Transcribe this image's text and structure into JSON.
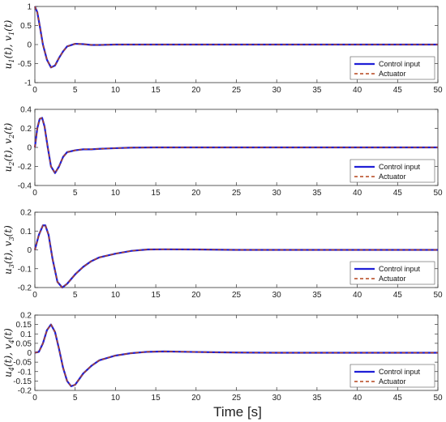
{
  "figure": {
    "xlabel": "Time [s]",
    "colors": {
      "control": "#1f1fd6",
      "actuator": "#b5451b",
      "axis": "#333333",
      "bg": "#ffffff"
    }
  },
  "chart_data": [
    {
      "type": "line",
      "ylabel": "u1(t), v1(t)",
      "ylabel_parts": {
        "var1": "u",
        "sub1": "1",
        "var2": "v",
        "sub2": "1"
      },
      "xlim": [
        0,
        50
      ],
      "ylim": [
        -1,
        1
      ],
      "xticks": [
        0,
        5,
        10,
        15,
        20,
        25,
        30,
        35,
        40,
        45,
        50
      ],
      "yticks": [
        -1,
        -0.5,
        0,
        0.5,
        1
      ],
      "ytick_labels": [
        "-1",
        "-0.5",
        "0",
        "0.5",
        "1"
      ],
      "legend": "bottom-right",
      "series": [
        {
          "name": "Control input",
          "style": "solid",
          "color": "#1f1fd6",
          "x": [
            0,
            0.3,
            0.6,
            1.0,
            1.5,
            2.0,
            2.5,
            3.0,
            3.5,
            4.0,
            5.0,
            6.0,
            7.0,
            8.0,
            10.0,
            15.0,
            20,
            30,
            40,
            50
          ],
          "y": [
            1.0,
            0.85,
            0.5,
            0.0,
            -0.4,
            -0.6,
            -0.55,
            -0.35,
            -0.18,
            -0.05,
            0.02,
            0.01,
            -0.01,
            -0.01,
            0.0,
            0.0,
            0.0,
            0.0,
            0.0,
            0.0
          ]
        },
        {
          "name": "Actuator",
          "style": "dashed",
          "color": "#b5451b",
          "x": [
            0,
            0.3,
            0.6,
            1.0,
            1.5,
            2.0,
            2.5,
            3.0,
            3.5,
            4.0,
            5.0,
            6.0,
            7.0,
            8.0,
            10.0,
            15.0,
            20,
            30,
            40,
            50
          ],
          "y": [
            1.0,
            0.85,
            0.5,
            0.0,
            -0.4,
            -0.6,
            -0.55,
            -0.35,
            -0.18,
            -0.05,
            0.02,
            0.01,
            -0.01,
            -0.01,
            0.0,
            0.0,
            0.0,
            0.0,
            0.0,
            0.0
          ]
        }
      ]
    },
    {
      "type": "line",
      "ylabel": "u2(t), v2(t)",
      "ylabel_parts": {
        "var1": "u",
        "sub1": "2",
        "var2": "v",
        "sub2": "2"
      },
      "xlim": [
        0,
        50
      ],
      "ylim": [
        -0.4,
        0.4
      ],
      "xticks": [
        0,
        5,
        10,
        15,
        20,
        25,
        30,
        35,
        40,
        45,
        50
      ],
      "yticks": [
        -0.4,
        -0.2,
        0,
        0.2,
        0.4
      ],
      "ytick_labels": [
        "-0.4",
        "-0.2",
        "0",
        "0.2",
        "0.4"
      ],
      "legend": "bottom-right",
      "series": [
        {
          "name": "Control input",
          "style": "solid",
          "color": "#1f1fd6",
          "x": [
            0,
            0.3,
            0.6,
            0.9,
            1.2,
            1.6,
            2.0,
            2.5,
            3.0,
            3.5,
            4.0,
            5.0,
            6.0,
            7.0,
            8.0,
            10.0,
            12.0,
            15.0,
            20,
            30,
            40,
            50
          ],
          "y": [
            0.0,
            0.2,
            0.3,
            0.31,
            0.22,
            0.0,
            -0.2,
            -0.27,
            -0.2,
            -0.1,
            -0.05,
            -0.03,
            -0.02,
            -0.02,
            -0.015,
            -0.008,
            -0.002,
            0.0,
            0.0,
            0.0,
            0.0,
            0.0
          ]
        },
        {
          "name": "Actuator",
          "style": "dashed",
          "color": "#b5451b",
          "x": [
            0,
            0.3,
            0.6,
            0.9,
            1.2,
            1.6,
            2.0,
            2.5,
            3.0,
            3.5,
            4.0,
            5.0,
            6.0,
            7.0,
            8.0,
            10.0,
            12.0,
            15.0,
            20,
            30,
            40,
            50
          ],
          "y": [
            0.0,
            0.2,
            0.3,
            0.31,
            0.22,
            0.0,
            -0.2,
            -0.27,
            -0.2,
            -0.1,
            -0.05,
            -0.03,
            -0.02,
            -0.02,
            -0.015,
            -0.008,
            -0.002,
            0.0,
            0.0,
            0.0,
            0.0,
            0.0
          ]
        }
      ]
    },
    {
      "type": "line",
      "ylabel": "u3(t), v3(t)",
      "ylabel_parts": {
        "var1": "u",
        "sub1": "3",
        "var2": "v",
        "sub2": "3"
      },
      "xlim": [
        0,
        50
      ],
      "ylim": [
        -0.2,
        0.2
      ],
      "xticks": [
        0,
        5,
        10,
        15,
        20,
        25,
        30,
        35,
        40,
        45,
        50
      ],
      "yticks": [
        -0.2,
        -0.1,
        0,
        0.1,
        0.2
      ],
      "ytick_labels": [
        "-0.2",
        "-0.1",
        "0",
        "0.1",
        "0.2"
      ],
      "legend": "bottom-right",
      "series": [
        {
          "name": "Control input",
          "style": "solid",
          "color": "#1f1fd6",
          "x": [
            0,
            0.5,
            1.0,
            1.3,
            1.7,
            2.2,
            2.8,
            3.4,
            4.0,
            5.0,
            6.0,
            7.0,
            8.0,
            10.0,
            12.0,
            14.0,
            16.0,
            20,
            25,
            30,
            40,
            50
          ],
          "y": [
            0.0,
            0.08,
            0.13,
            0.13,
            0.08,
            -0.05,
            -0.17,
            -0.2,
            -0.18,
            -0.13,
            -0.09,
            -0.06,
            -0.04,
            -0.02,
            -0.005,
            0.002,
            0.003,
            0.002,
            0.0,
            0.0,
            0.0,
            0.0
          ]
        },
        {
          "name": "Actuator",
          "style": "dashed",
          "color": "#b5451b",
          "x": [
            0,
            0.5,
            1.0,
            1.3,
            1.7,
            2.2,
            2.8,
            3.4,
            4.0,
            5.0,
            6.0,
            7.0,
            8.0,
            10.0,
            12.0,
            14.0,
            16.0,
            20,
            25,
            30,
            40,
            50
          ],
          "y": [
            0.0,
            0.08,
            0.13,
            0.13,
            0.08,
            -0.05,
            -0.17,
            -0.2,
            -0.18,
            -0.13,
            -0.09,
            -0.06,
            -0.04,
            -0.02,
            -0.005,
            0.002,
            0.003,
            0.002,
            0.0,
            0.0,
            0.0,
            0.0
          ]
        }
      ]
    },
    {
      "type": "line",
      "ylabel": "u4(t), v4(t)",
      "ylabel_parts": {
        "var1": "u",
        "sub1": "4",
        "var2": "v",
        "sub2": "4"
      },
      "xlim": [
        0,
        50
      ],
      "ylim": [
        -0.2,
        0.2
      ],
      "xticks": [
        0,
        5,
        10,
        15,
        20,
        25,
        30,
        35,
        40,
        45,
        50
      ],
      "yticks": [
        -0.2,
        -0.15,
        -0.1,
        -0.05,
        0,
        0.05,
        0.1,
        0.15,
        0.2
      ],
      "ytick_labels": [
        "-0.2",
        "-0.15",
        "-0.1",
        "-0.05",
        "0",
        "0.05",
        "0.1",
        "0.15",
        "0.2"
      ],
      "legend": "bottom-right",
      "series": [
        {
          "name": "Control input",
          "style": "solid",
          "color": "#1f1fd6",
          "x": [
            0,
            0.5,
            1.0,
            1.5,
            2.0,
            2.5,
            3.0,
            3.5,
            4.0,
            4.5,
            5.0,
            5.5,
            6.0,
            7.0,
            8.0,
            10.0,
            12.0,
            14.0,
            16.0,
            20,
            25,
            30,
            40,
            50
          ],
          "y": [
            0.0,
            0.005,
            0.05,
            0.12,
            0.15,
            0.11,
            0.02,
            -0.08,
            -0.15,
            -0.178,
            -0.17,
            -0.14,
            -0.11,
            -0.07,
            -0.04,
            -0.015,
            -0.002,
            0.005,
            0.007,
            0.004,
            0.001,
            0.0,
            0.0,
            0.0
          ]
        },
        {
          "name": "Actuator",
          "style": "dashed",
          "color": "#b5451b",
          "x": [
            0,
            0.5,
            1.0,
            1.5,
            2.0,
            2.5,
            3.0,
            3.5,
            4.0,
            4.5,
            5.0,
            5.5,
            6.0,
            7.0,
            8.0,
            10.0,
            12.0,
            14.0,
            16.0,
            20,
            25,
            30,
            40,
            50
          ],
          "y": [
            0.0,
            0.005,
            0.05,
            0.12,
            0.15,
            0.11,
            0.02,
            -0.08,
            -0.15,
            -0.178,
            -0.17,
            -0.14,
            -0.11,
            -0.07,
            -0.04,
            -0.015,
            -0.002,
            0.005,
            0.007,
            0.004,
            0.001,
            0.0,
            0.0,
            0.0
          ]
        }
      ]
    }
  ]
}
